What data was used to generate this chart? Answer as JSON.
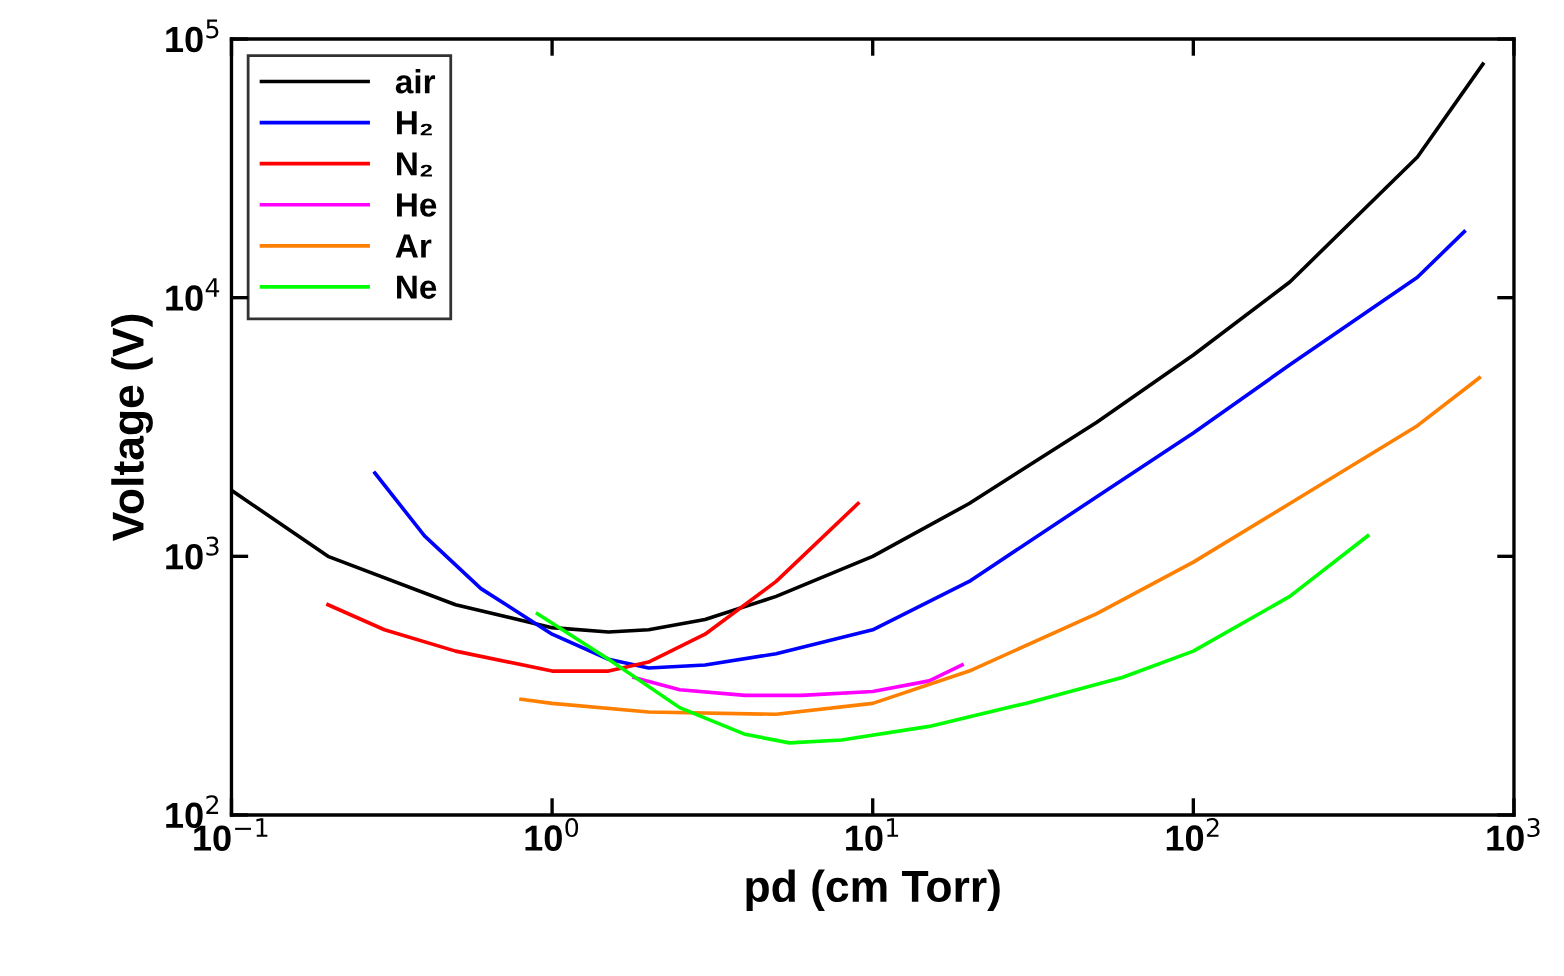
{
  "chart_data": {
    "type": "line",
    "xlabel": "pd (cm Torr)",
    "ylabel": "Voltage (V)",
    "log": "xy",
    "grid": false,
    "legend": "top left",
    "line_style": "solid",
    "marker": "none",
    "xlim": [
      0.1,
      1000
    ],
    "ylim": [
      100,
      100000
    ],
    "xticks": [
      {
        "value": 0.1,
        "label": "10$^{−1}$"
      },
      {
        "value": 1,
        "label": "10$^{0}$"
      },
      {
        "value": 10,
        "label": "10$^{1}$"
      },
      {
        "value": 100,
        "label": "10$^{2}$"
      },
      {
        "value": 1000,
        "label": "10$^{3}$"
      }
    ],
    "yticks": [
      {
        "value": 100,
        "label": "10$^{2}$"
      },
      {
        "value": 1000,
        "label": "10$^{3}$"
      },
      {
        "value": 10000,
        "label": "10$^{4}$"
      },
      {
        "value": 100000,
        "label": "10$^{5}$"
      }
    ],
    "series": [
      {
        "name": "air",
        "color": "#000000",
        "x": [
          0.1,
          0.2,
          0.5,
          1,
          1.5,
          2,
          3,
          5,
          10,
          20,
          50,
          100,
          200,
          500,
          800
        ],
        "values": [
          1800,
          1000,
          650,
          530,
          510,
          520,
          570,
          700,
          1000,
          1600,
          3300,
          6000,
          11500,
          35000,
          80000
        ]
      },
      {
        "name": "H₂",
        "color": "#0000ff",
        "x": [
          0.28,
          0.4,
          0.6,
          1,
          1.5,
          2,
          3,
          5,
          10,
          20,
          50,
          100,
          200,
          500,
          700
        ],
        "values": [
          2100,
          1200,
          750,
          500,
          400,
          370,
          380,
          420,
          520,
          800,
          1700,
          3000,
          5500,
          12000,
          18000
        ]
      },
      {
        "name": "N₂",
        "color": "#ff0000",
        "x": [
          0.2,
          0.3,
          0.5,
          1,
          1.5,
          2,
          3,
          5,
          9
        ],
        "values": [
          650,
          520,
          430,
          360,
          360,
          390,
          500,
          800,
          1600
        ]
      },
      {
        "name": "He",
        "color": "#ff00ff",
        "x": [
          1.8,
          2.5,
          4,
          6,
          10,
          15,
          19
        ],
        "values": [
          340,
          305,
          290,
          290,
          300,
          330,
          380
        ]
      },
      {
        "name": "Ar",
        "color": "#ff8000",
        "x": [
          0.8,
          1,
          2,
          5,
          10,
          20,
          50,
          100,
          200,
          500,
          780
        ],
        "values": [
          280,
          270,
          250,
          245,
          270,
          360,
          600,
          950,
          1600,
          3200,
          4900
        ]
      },
      {
        "name": "Ne",
        "color": "#00ff00",
        "x": [
          0.9,
          1.5,
          2.5,
          4,
          5.5,
          8,
          15,
          30,
          60,
          100,
          200,
          350
        ],
        "values": [
          600,
          400,
          260,
          205,
          190,
          195,
          220,
          270,
          340,
          430,
          700,
          1200
        ]
      }
    ]
  }
}
